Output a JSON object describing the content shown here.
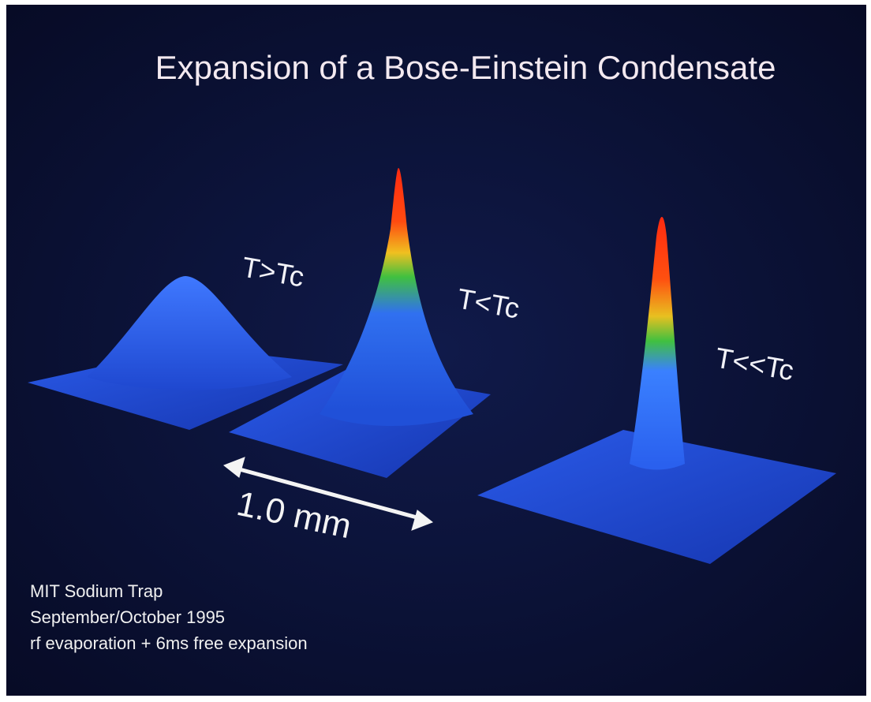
{
  "title": "Expansion of a Bose-Einstein Condensate",
  "panels": [
    {
      "label": "T>Tc"
    },
    {
      "label": "T<Tc"
    },
    {
      "label": "T<<Tc"
    }
  ],
  "scale_label": "1.0 mm",
  "credits": [
    "MIT Sodium Trap",
    "September/October 1995",
    "rf evaporation + 6ms free expansion"
  ]
}
